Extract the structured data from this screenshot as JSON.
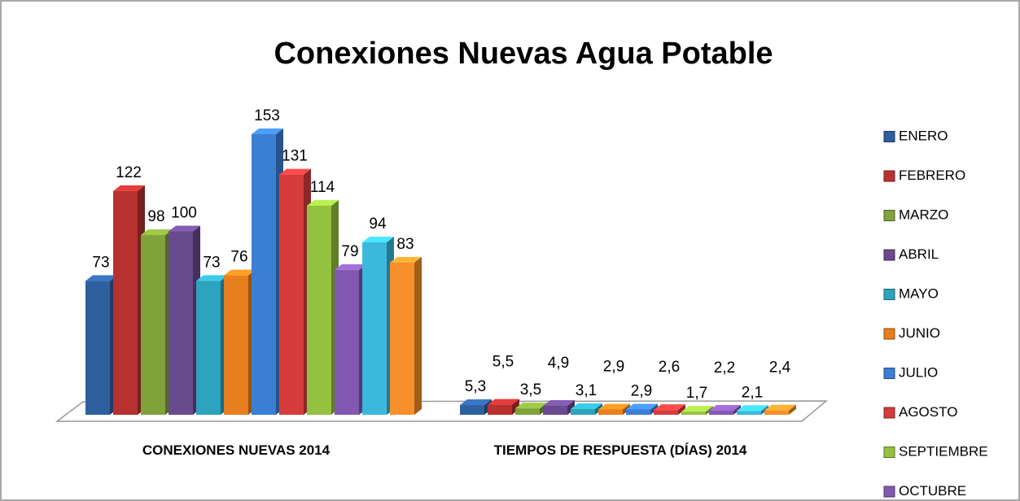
{
  "chart_data": {
    "type": "bar3d",
    "title": "Conexiones Nuevas Agua Potable",
    "categories": [
      "CONEXIONES NUEVAS 2014",
      "TIEMPOS DE RESPUESTA (DÍAS) 2014"
    ],
    "series": [
      {
        "name": "ENERO",
        "color": "#2e5f9e",
        "values": [
          73,
          5.3
        ],
        "value_labels": [
          "73",
          "5,3"
        ]
      },
      {
        "name": "FEBRERO",
        "color": "#b8302f",
        "values": [
          122,
          5.5
        ],
        "value_labels": [
          "122",
          "5,5"
        ]
      },
      {
        "name": "MARZO",
        "color": "#7fa23a",
        "values": [
          98,
          3.5
        ],
        "value_labels": [
          "98",
          "3,5"
        ]
      },
      {
        "name": "ABRIL",
        "color": "#6a4a8f",
        "values": [
          100,
          4.9
        ],
        "value_labels": [
          "100",
          "4,9"
        ]
      },
      {
        "name": "MAYO",
        "color": "#2ea3bd",
        "values": [
          73,
          3.1
        ],
        "value_labels": [
          "73",
          "3,1"
        ]
      },
      {
        "name": "JUNIO",
        "color": "#e87f1e",
        "values": [
          76,
          2.9
        ],
        "value_labels": [
          "76",
          "2,9"
        ]
      },
      {
        "name": "JULIO",
        "color": "#3b7fd4",
        "values": [
          153,
          2.9
        ],
        "value_labels": [
          "153",
          "2,9"
        ]
      },
      {
        "name": "AGOSTO",
        "color": "#d63c3c",
        "values": [
          131,
          2.6
        ],
        "value_labels": [
          "131",
          "2,6"
        ]
      },
      {
        "name": "SEPTIEMBRE",
        "color": "#95c140",
        "values": [
          114,
          1.7
        ],
        "value_labels": [
          "114",
          "1,7"
        ]
      },
      {
        "name": "OCTUBRE",
        "color": "#8358b0",
        "values": [
          79,
          2.2
        ],
        "value_labels": [
          "79",
          "2,2"
        ]
      },
      {
        "name": null,
        "color": "#3ab9dc",
        "values": [
          94,
          2.1
        ],
        "value_labels": [
          "94",
          "2,1"
        ]
      },
      {
        "name": null,
        "color": "#f78f2a",
        "values": [
          83,
          2.4
        ],
        "value_labels": [
          "83",
          "2,4"
        ]
      }
    ]
  }
}
